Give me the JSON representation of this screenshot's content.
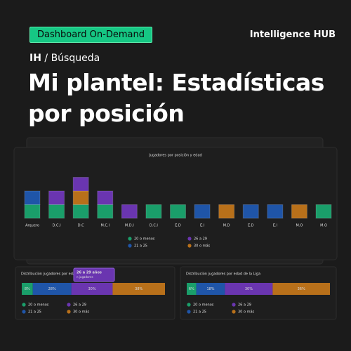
{
  "header": {
    "badge": "Dashboard On-Demand",
    "brand": "Intelligence HUB",
    "breadcrumb": [
      "IH",
      "/",
      "Búsqueda"
    ],
    "title": "Mi plantel: Estadísticas por posición"
  },
  "tooltip": {
    "title": "26 a 29 años",
    "subtitle": "n jugadores"
  },
  "chart_data": [
    {
      "type": "bar",
      "orientation": "vertical",
      "stacked": true,
      "title": "Jugadores por posición y edad",
      "categories": [
        "Arquero",
        "D.C.I",
        "D.C",
        "M.C.I",
        "M.D.I",
        "D.C.I",
        "E.D",
        "E.I",
        "M.D",
        "E.D",
        "E.I",
        "M.O",
        "M.O"
      ],
      "series": [
        {
          "name": "20 o menos",
          "color": "#1a9e6a",
          "values": [
            1,
            1,
            1,
            1,
            0,
            1,
            1,
            0,
            0,
            0,
            0,
            0,
            1
          ]
        },
        {
          "name": "21 a 25",
          "color": "#1f55a8",
          "values": [
            1,
            0,
            0,
            0,
            0,
            0,
            0,
            1,
            0,
            1,
            1,
            0,
            0
          ]
        },
        {
          "name": "26 a 29",
          "color": "#6a35b0",
          "values": [
            0,
            1,
            1,
            1,
            1,
            0,
            0,
            0,
            0,
            0,
            0,
            0,
            0
          ]
        },
        {
          "name": "30 o más",
          "color": "#b8701a",
          "values": [
            0,
            0,
            1,
            0,
            0,
            0,
            0,
            0,
            1,
            0,
            0,
            1,
            0
          ]
        }
      ]
    },
    {
      "type": "bar",
      "orientation": "horizontal",
      "stacked": true,
      "title": "Distribución jugadores por edad de",
      "series": [
        {
          "name": "20 o menos",
          "color": "#1a9e6a",
          "values": [
            8
          ],
          "value_labels": [
            "8%"
          ]
        },
        {
          "name": "21 a 25",
          "color": "#1f55a8",
          "values": [
            28
          ],
          "value_labels": [
            "28%"
          ]
        },
        {
          "name": "26 a 29",
          "color": "#6a35b0",
          "values": [
            30
          ],
          "value_labels": [
            "30%"
          ]
        },
        {
          "name": "30 o más",
          "color": "#b8701a",
          "values": [
            38
          ],
          "value_labels": [
            "38%"
          ]
        }
      ]
    },
    {
      "type": "bar",
      "orientation": "horizontal",
      "stacked": true,
      "title": "Distribución jugadores por edad de la Liga",
      "series": [
        {
          "name": "20 o menos",
          "color": "#1a9e6a",
          "values": [
            6
          ],
          "value_labels": [
            "6%"
          ]
        },
        {
          "name": "21 a 25",
          "color": "#1f55a8",
          "values": [
            18
          ],
          "value_labels": [
            "18%"
          ]
        },
        {
          "name": "26 a 29",
          "color": "#6a35b0",
          "values": [
            30
          ],
          "value_labels": [
            "30%"
          ]
        },
        {
          "name": "30 o más",
          "color": "#b8701a",
          "values": [
            36
          ],
          "value_labels": [
            "36%"
          ]
        }
      ]
    }
  ]
}
